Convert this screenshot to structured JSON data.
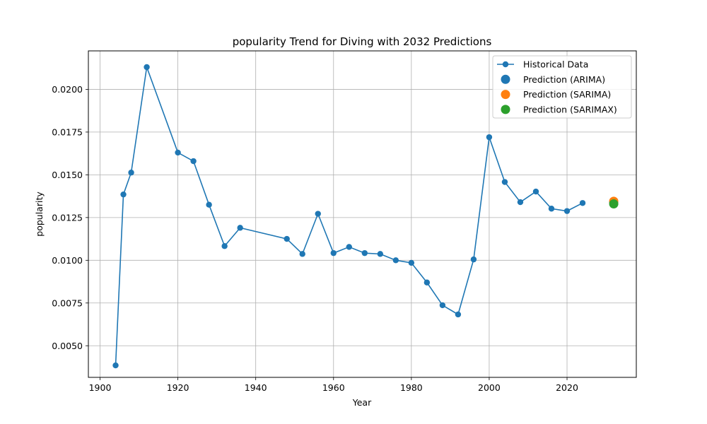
{
  "chart_data": {
    "type": "line",
    "title": "popularity Trend for Diving with 2032 Predictions",
    "xlabel": "Year",
    "ylabel": "popularity",
    "xlim": [
      1897,
      2037.8
    ],
    "ylim": [
      0.00315,
      0.02225
    ],
    "xticks": [
      1900,
      1920,
      1940,
      1960,
      1980,
      2000,
      2020
    ],
    "yticks": [
      0.005,
      0.0075,
      0.01,
      0.0125,
      0.015,
      0.0175,
      0.02
    ],
    "ytick_labels": [
      "0.0050",
      "0.0075",
      "0.0100",
      "0.0125",
      "0.0150",
      "0.0175",
      "0.0200"
    ],
    "grid": true,
    "legend_position": "top-right",
    "series": [
      {
        "name": "Historical Data",
        "kind": "line-marker",
        "color": "#1f77b4",
        "x": [
          1904,
          1906,
          1908,
          1912,
          1920,
          1924,
          1928,
          1932,
          1936,
          1948,
          1952,
          1956,
          1960,
          1964,
          1968,
          1972,
          1976,
          1980,
          1984,
          1988,
          1992,
          1996,
          2000,
          2004,
          2008,
          2012,
          2016,
          2020,
          2024
        ],
        "y": [
          0.00385,
          0.01385,
          0.01513,
          0.0213,
          0.0163,
          0.0158,
          0.01325,
          0.01083,
          0.0119,
          0.01125,
          0.01037,
          0.01272,
          0.01042,
          0.01078,
          0.01042,
          0.01037,
          0.01,
          0.00985,
          0.0087,
          0.00737,
          0.00683,
          0.01005,
          0.0172,
          0.01458,
          0.0134,
          0.01402,
          0.01302,
          0.01288,
          0.01335
        ]
      },
      {
        "name": "Prediction (ARIMA)",
        "kind": "point",
        "color": "#1f77b4",
        "x": [
          2032
        ],
        "y": [
          0.0134
        ]
      },
      {
        "name": "Prediction (SARIMA)",
        "kind": "point",
        "color": "#ff7f0e",
        "x": [
          2032
        ],
        "y": [
          0.01345
        ]
      },
      {
        "name": "Prediction (SARIMAX)",
        "kind": "point",
        "color": "#2ca02c",
        "x": [
          2032
        ],
        "y": [
          0.0133
        ]
      }
    ]
  }
}
